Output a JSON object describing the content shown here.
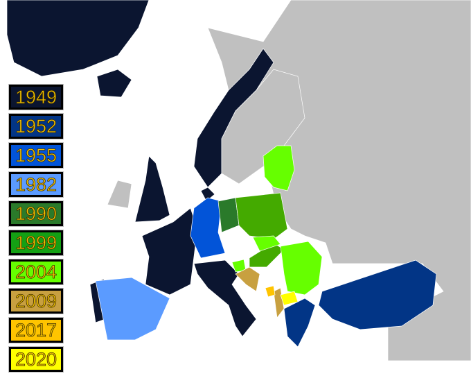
{
  "legend": [
    {
      "year": "1949",
      "color": "#0b1530"
    },
    {
      "year": "1952",
      "color": "#023586"
    },
    {
      "year": "1955",
      "color": "#0254d8"
    },
    {
      "year": "1982",
      "color": "#5b9bff"
    },
    {
      "year": "1990",
      "color": "#2a7a2a"
    },
    {
      "year": "1999",
      "color": "#14a014"
    },
    {
      "year": "2004",
      "color": "#66ff00"
    },
    {
      "year": "2009",
      "color": "#c8a040"
    },
    {
      "year": "2017",
      "color": "#ffc400"
    },
    {
      "year": "2020",
      "color": "#ffff00"
    }
  ],
  "colors": {
    "sea": "#ffffff",
    "non_member": "#c0c0c0",
    "text": "#f5c400"
  }
}
